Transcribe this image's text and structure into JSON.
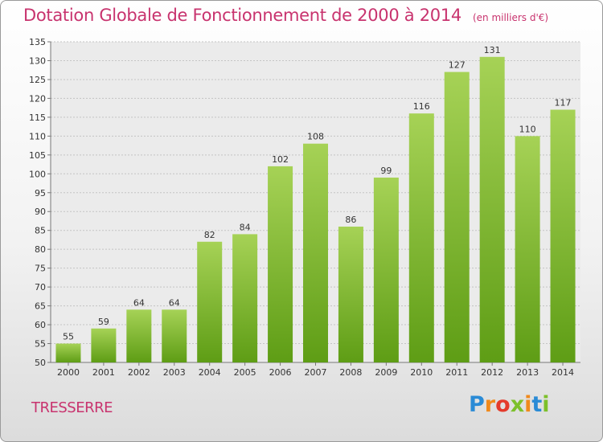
{
  "header": {
    "title": "Dotation Globale de Fonctionnement de 2000 à 2014",
    "subtitle": "(en milliers d'€)"
  },
  "footer": {
    "town": "TRESSERRE",
    "logo": "Proxiti"
  },
  "colors": {
    "title": "#c8336e",
    "bar_light": "#a6d256",
    "bar_dark": "#5e9d15",
    "logo_blue": "#2a8bd6",
    "logo_orange": "#f08a1c",
    "logo_red": "#e43b2c",
    "logo_green": "#7cc02a"
  },
  "chart_data": {
    "type": "bar",
    "title": "Dotation Globale de Fonctionnement de 2000 à 2014",
    "subtitle": "(en milliers d'€)",
    "categories": [
      "2000",
      "2001",
      "2002",
      "2003",
      "2004",
      "2005",
      "2006",
      "2007",
      "2008",
      "2009",
      "2010",
      "2011",
      "2012",
      "2013",
      "2014"
    ],
    "values": [
      55,
      59,
      64,
      64,
      82,
      84,
      102,
      108,
      86,
      99,
      116,
      127,
      131,
      110,
      117
    ],
    "ylim": [
      50,
      135
    ],
    "yticks": [
      50,
      55,
      60,
      65,
      70,
      75,
      80,
      85,
      90,
      95,
      100,
      105,
      110,
      115,
      120,
      125,
      130,
      135
    ],
    "grid": true,
    "legend": "none"
  }
}
